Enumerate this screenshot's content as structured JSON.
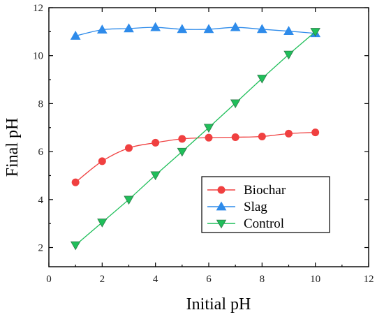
{
  "chart_data": {
    "type": "line",
    "title": "",
    "xlabel": "Initial pH",
    "ylabel": "Final pH",
    "xlim": [
      0,
      12
    ],
    "ylim": [
      1.2,
      12
    ],
    "xticks": [
      0,
      2,
      4,
      6,
      8,
      10,
      12
    ],
    "yticks": [
      2,
      4,
      6,
      8,
      10,
      12
    ],
    "grid": false,
    "legend_position": "lower-right",
    "series": [
      {
        "name": "Biochar",
        "color": "#f04040",
        "marker": "circle",
        "x": [
          1,
          2,
          3,
          4,
          5,
          6,
          7,
          8,
          9,
          10
        ],
        "y": [
          4.72,
          5.6,
          6.15,
          6.37,
          6.53,
          6.58,
          6.6,
          6.63,
          6.75,
          6.8
        ]
      },
      {
        "name": "Slag",
        "color": "#2e8bea",
        "marker": "triangle-up",
        "x": [
          1,
          2,
          3,
          4,
          5,
          6,
          7,
          8,
          9,
          10
        ],
        "y": [
          10.82,
          11.08,
          11.13,
          11.18,
          11.1,
          11.1,
          11.18,
          11.1,
          11.02,
          10.93
        ]
      },
      {
        "name": "Control",
        "color": "#1fbf5a",
        "marker": "triangle-down",
        "x": [
          1,
          2,
          3,
          4,
          5,
          6,
          7,
          8,
          9,
          10
        ],
        "y": [
          2.1,
          3.05,
          4.0,
          5.02,
          6.0,
          7.0,
          8.02,
          9.05,
          10.05,
          11.0
        ]
      }
    ]
  }
}
